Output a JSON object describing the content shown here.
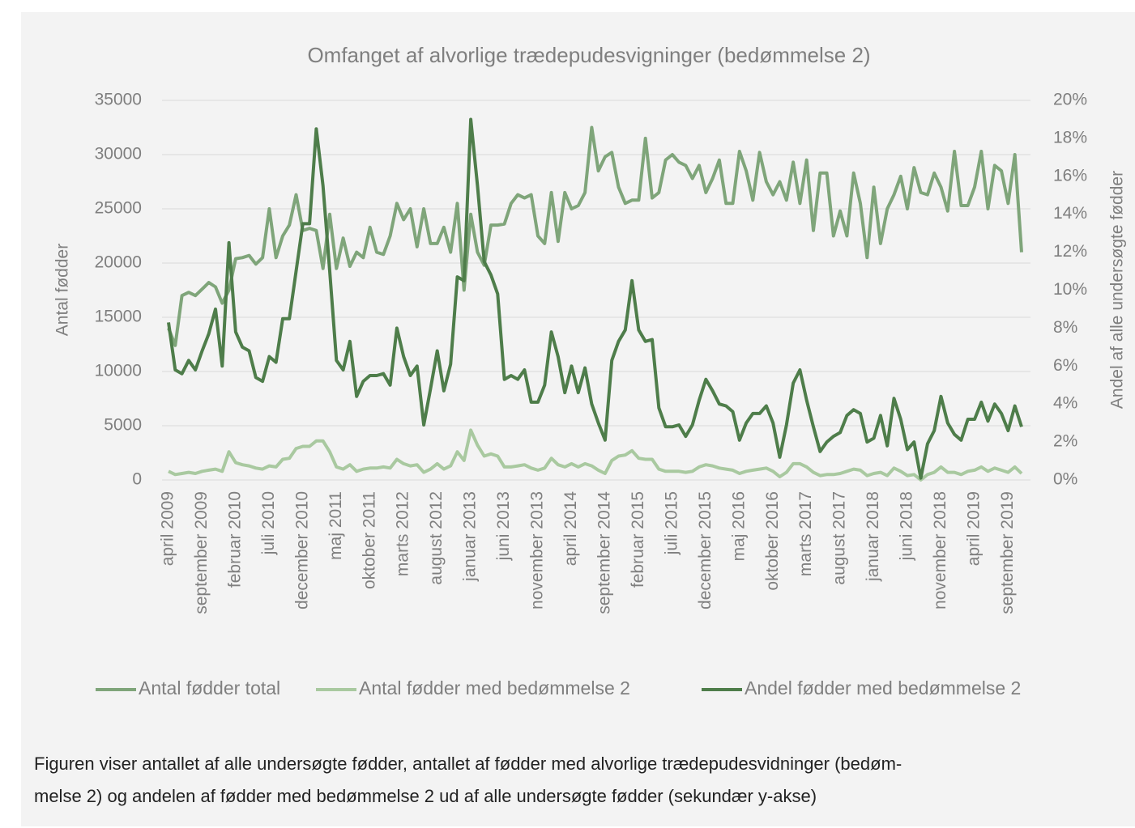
{
  "chart_data": {
    "type": "line",
    "title": "Omfanget af alvorlige trædepudesvigninger (bedømmelse  2)",
    "y_label": "Antal fødder",
    "y2_label": "Andel af alle undersøgte fødder",
    "categories": [
      "april 2009",
      null,
      null,
      null,
      null,
      "september 2009",
      null,
      null,
      null,
      null,
      "februar 2010",
      null,
      null,
      null,
      null,
      "juli 2010",
      null,
      null,
      null,
      null,
      "december 2010",
      null,
      null,
      null,
      null,
      "maj 2011",
      null,
      null,
      null,
      null,
      "oktober 2011",
      null,
      null,
      null,
      null,
      "marts 2012",
      null,
      null,
      null,
      null,
      "august 2012",
      null,
      null,
      null,
      null,
      "januar 2013",
      null,
      null,
      null,
      null,
      "juni 2013",
      null,
      null,
      null,
      null,
      "november 2013",
      null,
      null,
      null,
      null,
      "april 2014",
      null,
      null,
      null,
      null,
      "september 2014",
      null,
      null,
      null,
      null,
      "februar 2015",
      null,
      null,
      null,
      null,
      "juli 2015",
      null,
      null,
      null,
      null,
      "december 2015",
      null,
      null,
      null,
      null,
      "maj 2016",
      null,
      null,
      null,
      null,
      "oktober 2016",
      null,
      null,
      null,
      null,
      "marts 2017",
      null,
      null,
      null,
      null,
      "august 2017",
      null,
      null,
      null,
      null,
      "januar 2018",
      null,
      null,
      null,
      null,
      "juni 2018",
      null,
      null,
      null,
      null,
      "november 2018",
      null,
      null,
      null,
      null,
      "april 2019",
      null,
      null,
      null,
      null,
      "september 2019",
      null,
      null
    ],
    "series": [
      {
        "name": "Antal fødder total",
        "color": "#7fa57a",
        "axis": "y",
        "values": [
          14000,
          12400,
          17000,
          17300,
          17000,
          17600,
          18200,
          17800,
          16300,
          17500,
          20400,
          20500,
          20700,
          19900,
          20500,
          25000,
          20500,
          22500,
          23500,
          26300,
          23000,
          23200,
          23000,
          19500,
          24500,
          19500,
          22300,
          19700,
          21000,
          20500,
          23300,
          21000,
          20800,
          22500,
          25500,
          24000,
          25000,
          21500,
          25000,
          21800,
          21800,
          23300,
          21000,
          25500,
          17500,
          24500,
          21000,
          19800,
          23500,
          23500,
          23600,
          25500,
          26300,
          26000,
          26300,
          22500,
          21800,
          26500,
          22000,
          26500,
          25000,
          25300,
          26500,
          32500,
          28500,
          29800,
          30200,
          27000,
          25500,
          25800,
          25800,
          31500,
          26000,
          26500,
          29500,
          30000,
          29300,
          29000,
          27800,
          29000,
          26500,
          27800,
          29500,
          25500,
          25500,
          30300,
          28500,
          25800,
          30200,
          27500,
          26300,
          27500,
          25800,
          29300,
          25500,
          29500,
          23000,
          28300,
          28300,
          22500,
          24800,
          22500,
          28300,
          25500,
          20500,
          27000,
          21800,
          25000,
          26300,
          28000,
          25000,
          28800,
          26500,
          26300,
          28300,
          27000,
          24800,
          30300,
          25300,
          25300,
          27000,
          30300,
          25000,
          29000,
          28500,
          25500,
          30000,
          21000
        ]
      },
      {
        "name": "Antal fødder med bedømmelse 2",
        "color": "#a9c9a0",
        "axis": "y",
        "values": [
          800,
          500,
          600,
          700,
          600,
          800,
          900,
          1000,
          800,
          2600,
          1600,
          1400,
          1300,
          1100,
          1000,
          1300,
          1200,
          1900,
          2000,
          2900,
          3100,
          3100,
          3600,
          3600,
          2600,
          1200,
          1000,
          1400,
          800,
          1000,
          1100,
          1100,
          1200,
          1100,
          1900,
          1500,
          1300,
          1400,
          700,
          1000,
          1500,
          1000,
          1300,
          2600,
          1800,
          4600,
          3200,
          2200,
          2400,
          2200,
          1200,
          1200,
          1300,
          1400,
          1100,
          900,
          1100,
          2000,
          1400,
          1200,
          1500,
          1200,
          1500,
          1300,
          900,
          600,
          1800,
          2200,
          2300,
          2700,
          2000,
          1900,
          1900,
          1000,
          800,
          800,
          800,
          700,
          800,
          1200,
          1400,
          1300,
          1100,
          1000,
          900,
          600,
          800,
          900,
          1000,
          1100,
          800,
          300,
          700,
          1500,
          1500,
          1200,
          700,
          400,
          500,
          500,
          600,
          800,
          1000,
          900,
          400,
          600,
          700,
          400,
          1100,
          800,
          400,
          500,
          0,
          500,
          700,
          1200,
          700,
          700,
          500,
          800,
          900,
          1200,
          800,
          1100,
          900,
          700,
          1200,
          600
        ]
      },
      {
        "name": "Andel fødder med bedømmelse 2",
        "color": "#4e7d4a",
        "axis": "y2",
        "values": [
          8.3,
          5.8,
          5.6,
          6.3,
          5.8,
          6.8,
          7.7,
          9.0,
          6.0,
          12.5,
          7.8,
          7.0,
          6.8,
          5.4,
          5.2,
          6.5,
          6.2,
          8.5,
          8.5,
          11.0,
          13.5,
          13.5,
          18.5,
          15.5,
          11.0,
          6.3,
          5.8,
          7.3,
          4.4,
          5.2,
          5.5,
          5.5,
          5.6,
          5.0,
          8.0,
          6.5,
          5.5,
          6.0,
          2.9,
          4.8,
          6.8,
          4.7,
          6.1,
          10.7,
          10.5,
          19.0,
          15.5,
          11.5,
          10.8,
          9.8,
          5.3,
          5.5,
          5.3,
          5.8,
          4.1,
          4.1,
          5.0,
          7.8,
          6.5,
          4.6,
          6.0,
          4.6,
          5.9,
          4.0,
          3.0,
          2.1,
          6.3,
          7.3,
          7.9,
          10.5,
          7.9,
          7.3,
          7.4,
          3.8,
          2.8,
          2.8,
          2.9,
          2.3,
          2.9,
          4.2,
          5.3,
          4.7,
          4.0,
          3.9,
          3.6,
          2.1,
          3.0,
          3.5,
          3.5,
          3.9,
          3.0,
          1.2,
          2.9,
          5.1,
          5.8,
          4.2,
          2.8,
          1.5,
          2.0,
          2.3,
          2.5,
          3.4,
          3.7,
          3.5,
          2.0,
          2.2,
          3.4,
          1.8,
          4.3,
          3.2,
          1.6,
          2.0,
          0.1,
          1.9,
          2.6,
          4.4,
          3.0,
          2.4,
          2.1,
          3.2,
          3.2,
          4.1,
          3.1,
          4.0,
          3.5,
          2.6,
          3.9,
          2.8
        ]
      }
    ],
    "ylim": [
      0,
      35000
    ],
    "yticks": [
      0,
      5000,
      10000,
      15000,
      20000,
      25000,
      30000,
      35000
    ],
    "y2lim": [
      0,
      20
    ],
    "y2ticks": [
      {
        "value": 0,
        "label": "0%"
      },
      {
        "value": 2,
        "label": "2%"
      },
      {
        "value": 4,
        "label": "4%"
      },
      {
        "value": 6,
        "label": "6%"
      },
      {
        "value": 8,
        "label": "8%"
      },
      {
        "value": 10,
        "label": "10%"
      },
      {
        "value": 12,
        "label": "12%"
      },
      {
        "value": 14,
        "label": "14%"
      },
      {
        "value": 16,
        "label": "16%"
      },
      {
        "value": 18,
        "label": "18%"
      },
      {
        "value": 20,
        "label": "20%"
      }
    ],
    "grid": true,
    "legend": "bottom"
  },
  "caption": [
    "Figuren viser antallet af alle undersøgte fødder, antallet af fødder med alvorlige trædepudesvidninger (bedøm-",
    "melse 2) og andelen af fødder med bedømmelse 2 ud af alle undersøgte fødder (sekundær y-akse)"
  ]
}
